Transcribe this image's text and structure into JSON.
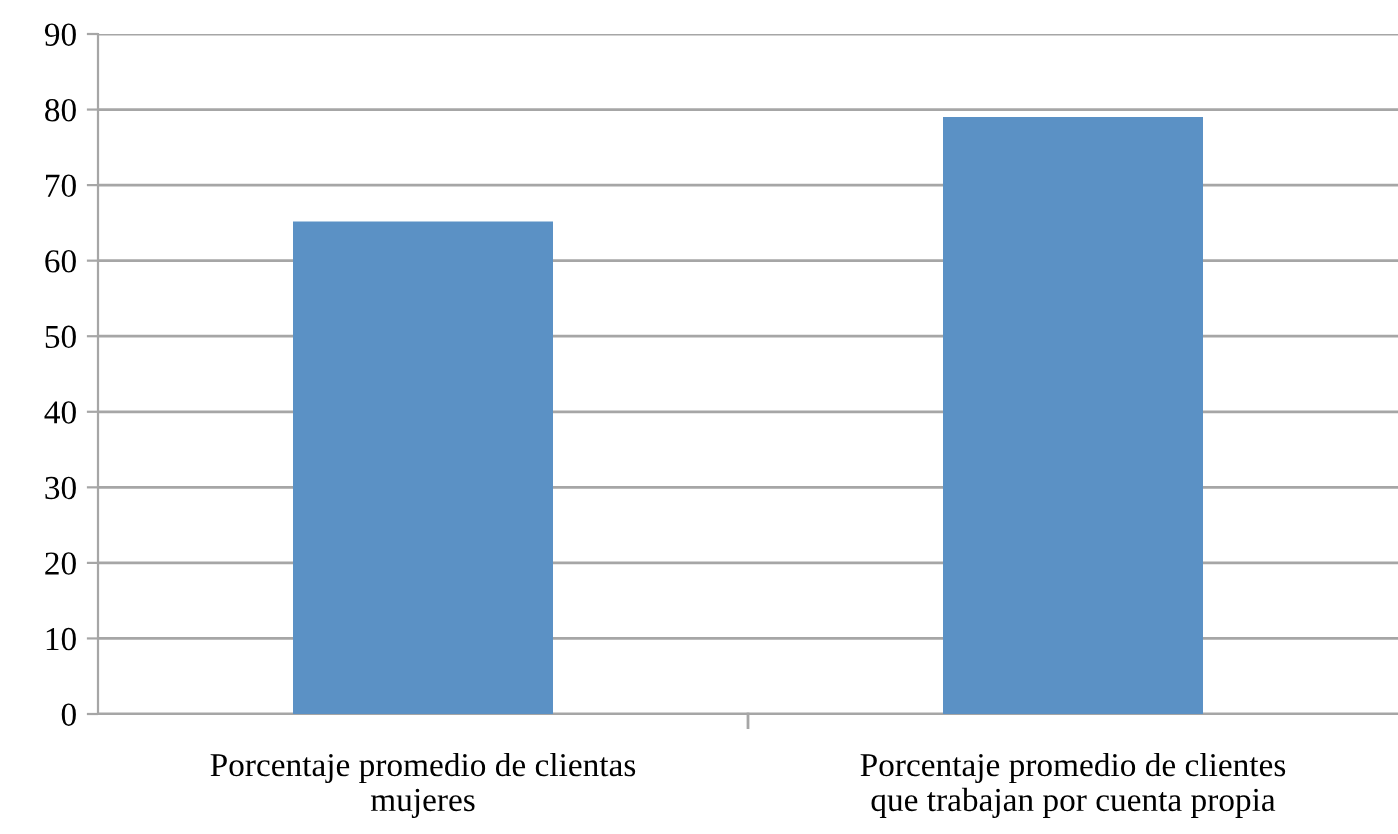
{
  "chart_data": {
    "type": "bar",
    "categories": [
      "Porcentaje promedio de clientas mujeres",
      "Porcentaje promedio de clientes que trabajan por cuenta propia"
    ],
    "values": [
      65.2,
      79
    ],
    "color": "#5b91c5",
    "ylim": [
      0,
      90
    ],
    "yticks": [
      0,
      10,
      20,
      30,
      40,
      50,
      60,
      70,
      80,
      90
    ],
    "grid": "y",
    "legend": false
  }
}
